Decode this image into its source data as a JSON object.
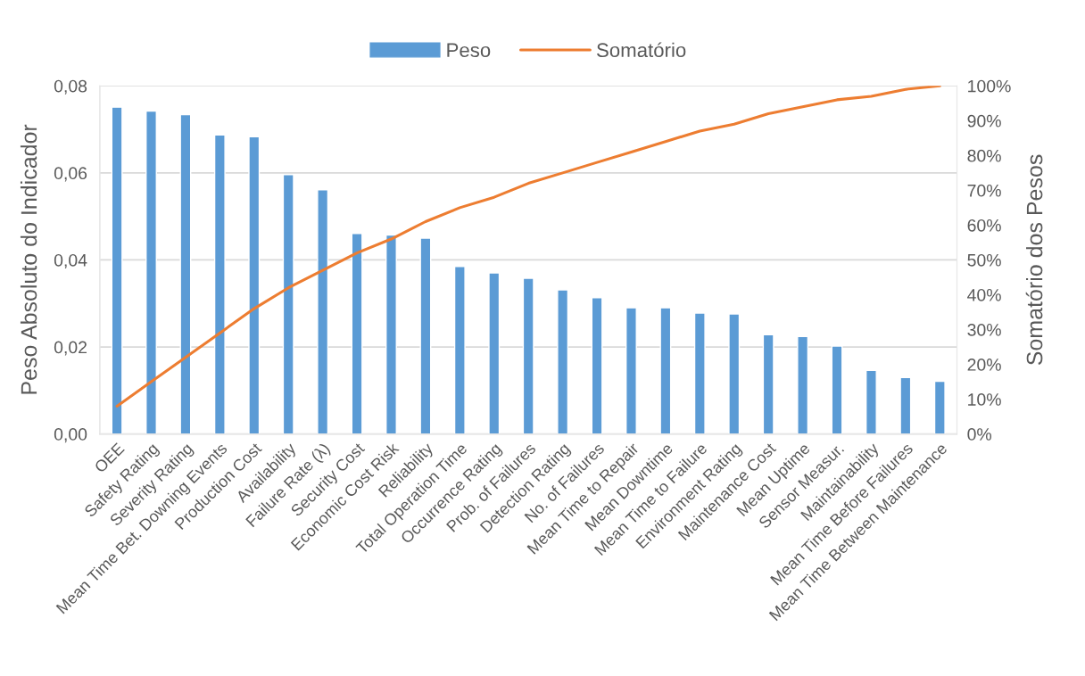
{
  "chart_data": {
    "type": "bar",
    "categories": [
      "OEE",
      "Safety Rating",
      "Severity Rating",
      "Mean Time Bet. Downing Events",
      "Production Cost",
      "Availability",
      "Failure Rate (λ)",
      "Security Cost",
      "Economic Cost Risk",
      "Reliability",
      "Total Operation Time",
      "Occurrence Rating",
      "Prob. of Failures",
      "Detection Rating",
      "No. of Failures",
      "Mean Time to Repair",
      "Mean Downtime",
      "Mean Time to Failure",
      "Environment Rating",
      "Maintenance Cost",
      "Mean Uptime",
      "Sensor Measur.",
      "Maintainability",
      "Mean Time Before Failures",
      "Mean Time Between Maintenance"
    ],
    "series": [
      {
        "name": "Peso",
        "color": "#5b9bd5",
        "values": [
          0.0751,
          0.0742,
          0.0734,
          0.0687,
          0.0683,
          0.0596,
          0.0561,
          0.0461,
          0.0457,
          0.045,
          0.0385,
          0.037,
          0.0358,
          0.0331,
          0.0313,
          0.029,
          0.029,
          0.0278,
          0.0276,
          0.0228,
          0.0224,
          0.0202,
          0.0146,
          0.013,
          0.0121
        ]
      },
      {
        "name": "Somatório",
        "type": "line",
        "axis": "y2",
        "color": "#ed7d31",
        "values": [
          8,
          15,
          22,
          29,
          36,
          42,
          47,
          52,
          56,
          61,
          65,
          68,
          72,
          75,
          78,
          81,
          84,
          87,
          89,
          92,
          94,
          96,
          97,
          99,
          100
        ]
      }
    ],
    "ylabel": "Peso Absoluto do Indicador",
    "y2label": "Somatório dos Pesos",
    "ylim": [
      0,
      0.08
    ],
    "yticks": [
      {
        "value": 0,
        "label": "0,00"
      },
      {
        "value": 0.02,
        "label": "0,02"
      },
      {
        "value": 0.04,
        "label": "0,04"
      },
      {
        "value": 0.06,
        "label": "0,06"
      },
      {
        "value": 0.08,
        "label": "0,08"
      }
    ],
    "y2lim": [
      0,
      100
    ],
    "y2ticks": [
      {
        "value": 0,
        "label": "0%"
      },
      {
        "value": 10,
        "label": "10%"
      },
      {
        "value": 20,
        "label": "20%"
      },
      {
        "value": 30,
        "label": "30%"
      },
      {
        "value": 40,
        "label": "40%"
      },
      {
        "value": 50,
        "label": "50%"
      },
      {
        "value": 60,
        "label": "60%"
      },
      {
        "value": 70,
        "label": "70%"
      },
      {
        "value": 80,
        "label": "80%"
      },
      {
        "value": 90,
        "label": "90%"
      },
      {
        "value": 100,
        "label": "100%"
      }
    ],
    "grid": "y",
    "legend": "top",
    "marker": "none",
    "line_style": "solid"
  }
}
